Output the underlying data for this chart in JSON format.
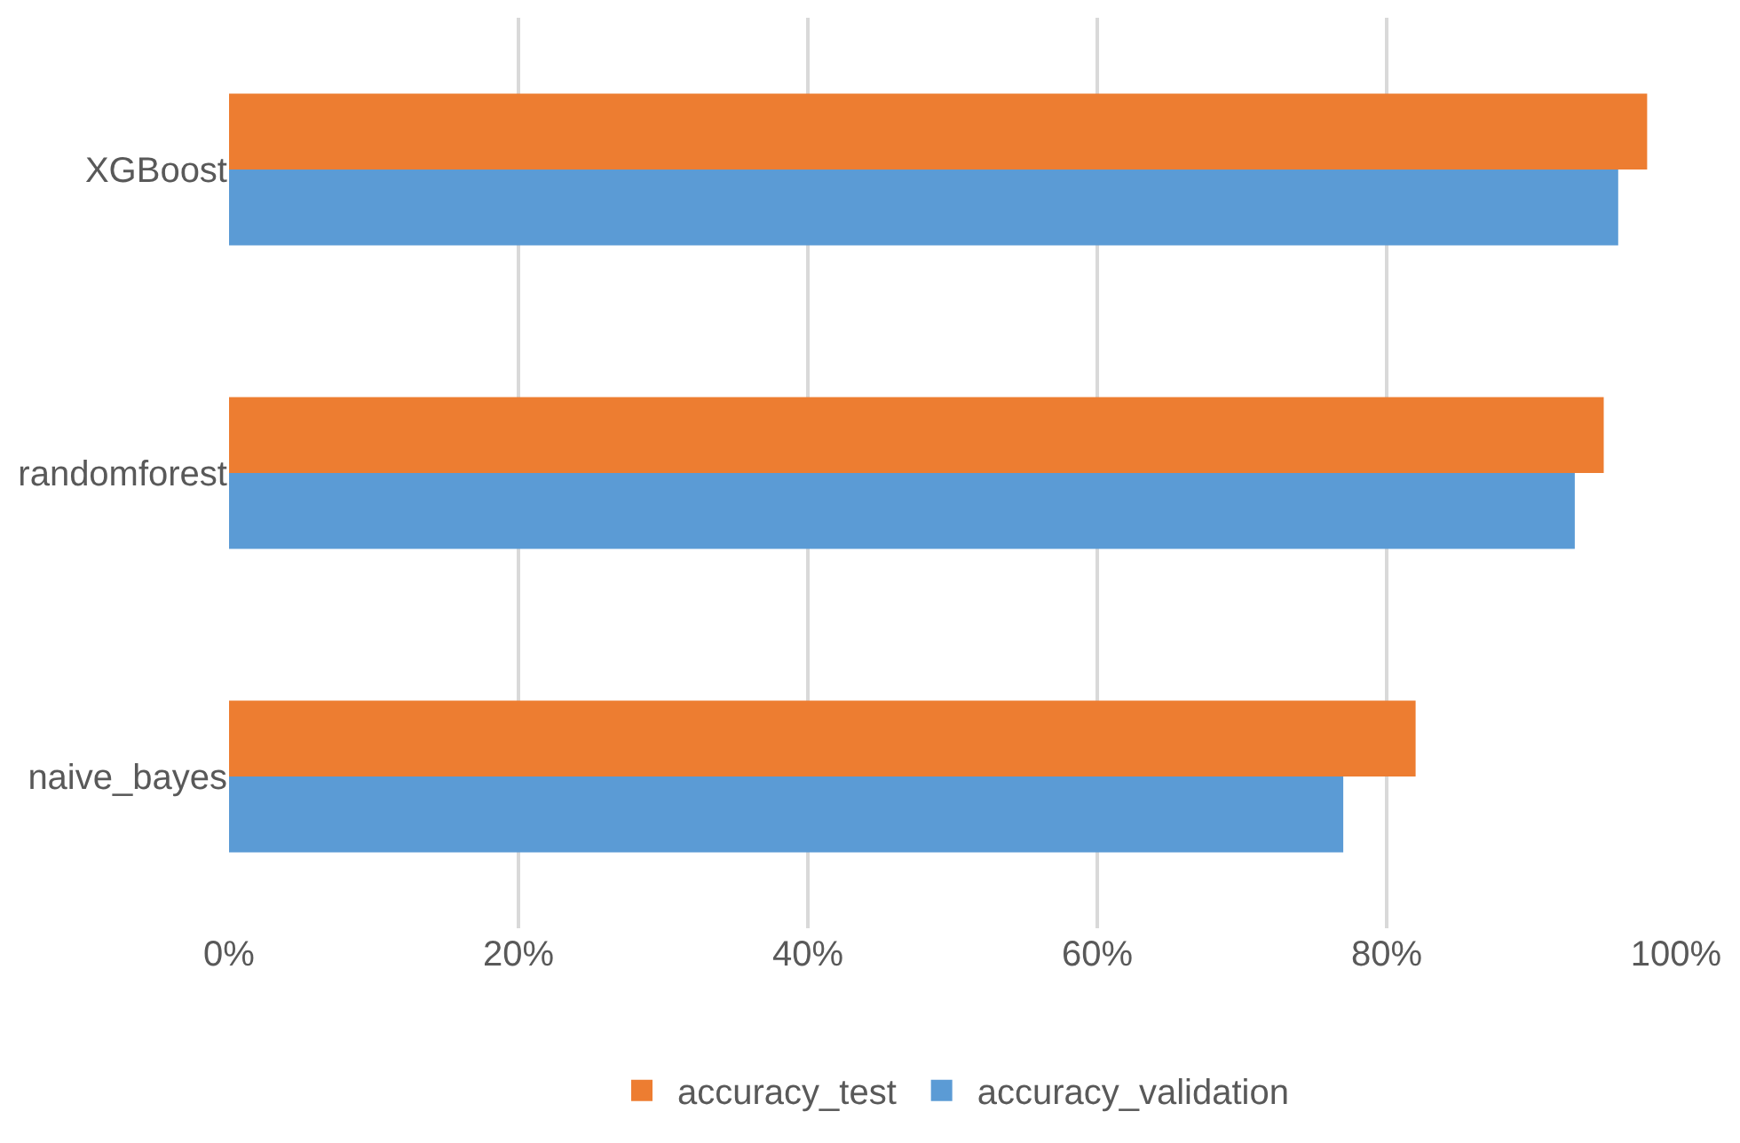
{
  "chart_data": {
    "type": "bar",
    "orientation": "horizontal",
    "categories": [
      "XGBoost",
      "randomforest",
      "naive_bayes"
    ],
    "series": [
      {
        "name": "accuracy_test",
        "color": "#ed7d31",
        "values": [
          98,
          95,
          82
        ]
      },
      {
        "name": "accuracy_validation",
        "color": "#5b9bd5",
        "values": [
          96,
          93,
          77
        ]
      }
    ],
    "xlim": [
      0,
      100
    ],
    "xticks": [
      {
        "value": 0,
        "label": "0%"
      },
      {
        "value": 20,
        "label": "20%"
      },
      {
        "value": 40,
        "label": "40%"
      },
      {
        "value": 60,
        "label": "60%"
      },
      {
        "value": 80,
        "label": "80%"
      },
      {
        "value": 100,
        "label": "100%"
      }
    ],
    "grid": "x",
    "legend": "bottom"
  }
}
